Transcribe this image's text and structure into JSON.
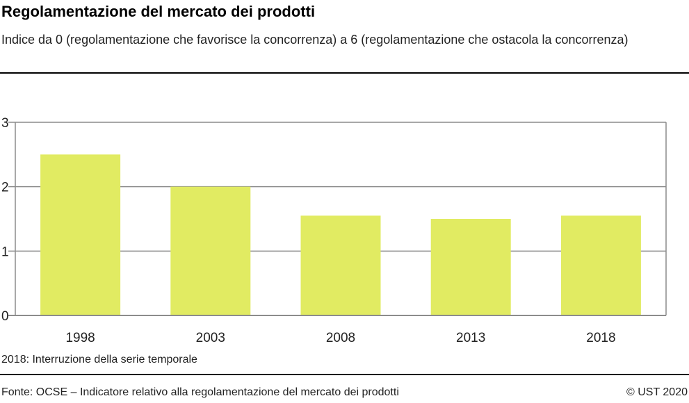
{
  "title": "Regolamentazione del mercato dei prodotti",
  "subtitle": "Indice da 0 (regolamentazione che favorisce la concorrenza) a 6 (regolamentazione che ostacola la concorrenza)",
  "note": "2018: Interruzione della serie temporale",
  "source": "Fonte: OCSE – Indicatore relativo alla regolamentazione del mercato dei prodotti",
  "copyright": "© UST 2020",
  "colors": {
    "bar": "#e1eb62",
    "grid": "#8c8c8c"
  },
  "chart_data": {
    "type": "bar",
    "categories": [
      "1998",
      "2003",
      "2008",
      "2013",
      "2018"
    ],
    "values": [
      2.5,
      2.0,
      1.55,
      1.5,
      1.55
    ],
    "ylim": [
      0,
      3
    ],
    "yticks": [
      "0",
      "1",
      "2",
      "3"
    ],
    "grid": true,
    "title": "Regolamentazione del mercato dei prodotti",
    "xlabel": "",
    "ylabel": ""
  }
}
